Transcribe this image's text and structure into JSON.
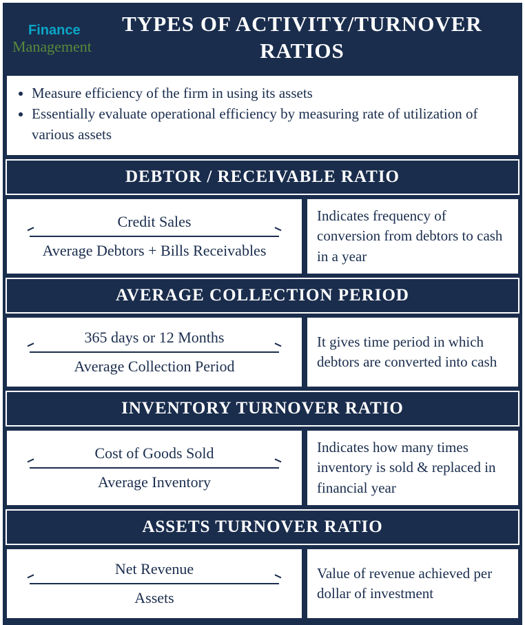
{
  "colors": {
    "primary": "#1a2d4d",
    "white": "#ffffff",
    "logo_blue": "#0aa6c8",
    "logo_green": "#5a8a3a"
  },
  "logo": {
    "line1": "Finance",
    "line2": "Management"
  },
  "title": "TYPES OF ACTIVITY/TURNOVER RATIOS",
  "intro": {
    "bullets": [
      "Measure efficiency of the firm in using its assets",
      "Essentially evaluate operational efficiency by measuring rate of utilization of various assets"
    ]
  },
  "sections": [
    {
      "header": "DEBTOR / RECEIVABLE RATIO",
      "numerator": "Credit Sales",
      "denominator": "Average Debtors + Bills Receivables",
      "description": "Indicates frequency of conversion from debtors to cash in a year"
    },
    {
      "header": "AVERAGE COLLECTION PERIOD",
      "numerator": "365 days or 12 Months",
      "denominator": "Average Collection Period",
      "description": "It gives  time period in which debtors are converted into cash"
    },
    {
      "header": "INVENTORY TURNOVER RATIO",
      "numerator": "Cost of Goods Sold",
      "denominator": "Average Inventory",
      "description": "Indicates how many times inventory is sold & replaced in financial year"
    },
    {
      "header": "ASSETS TURNOVER RATIO",
      "numerator": "Net Revenue",
      "denominator": "Assets",
      "description": "Value of revenue achieved per dollar of investment"
    }
  ]
}
